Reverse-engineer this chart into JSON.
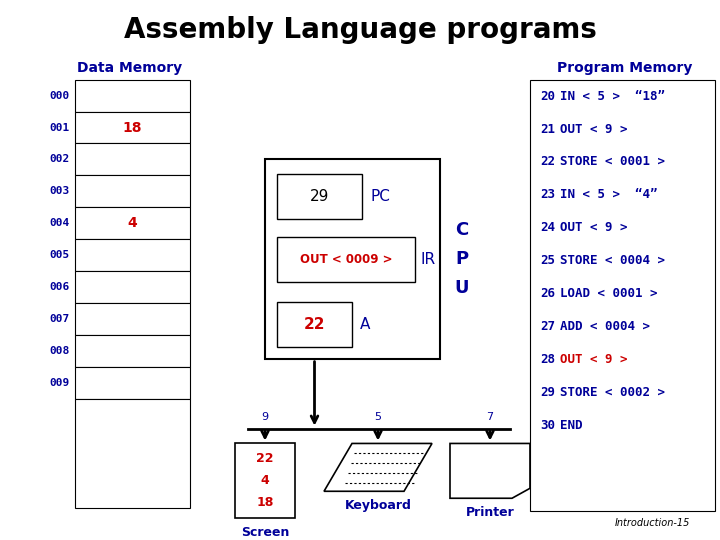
{
  "title": "Assembly Language programs",
  "title_fontsize": 20,
  "title_fontweight": "bold",
  "bg_color": "#ffffff",
  "data_memory_label": "Data Memory",
  "program_memory_label": "Program Memory",
  "label_color": "#000099",
  "label_fontsize": 9,
  "memory_rows": [
    "000",
    "001",
    "002",
    "003",
    "004",
    "005",
    "006",
    "007",
    "008",
    "009"
  ],
  "memory_values": {
    "001": "18",
    "004": "4"
  },
  "memory_value_color": "#cc0000",
  "cpu_label": "C\nP\nU",
  "cpu_label_color": "#000099",
  "pc_val": "29",
  "pc_label": "PC",
  "ir_val": "OUT < 0009 >",
  "ir_label": "IR",
  "ir_val_color": "#cc0000",
  "a_val": "22",
  "a_label": "A",
  "a_val_color": "#cc0000",
  "program_lines": [
    {
      "num": "20",
      "text": "IN < 5 >  “18”",
      "color": "#000099"
    },
    {
      "num": "21",
      "text": "OUT < 9 >",
      "color": "#000099"
    },
    {
      "num": "22",
      "text": "STORE < 0001 >",
      "color": "#000099"
    },
    {
      "num": "23",
      "text": "IN < 5 >  “4”",
      "color": "#000099"
    },
    {
      "num": "24",
      "text": "OUT < 9 >",
      "color": "#000099"
    },
    {
      "num": "25",
      "text": "STORE < 0004 >",
      "color": "#000099"
    },
    {
      "num": "26",
      "text": "LOAD < 0001 >",
      "color": "#000099"
    },
    {
      "num": "27",
      "text": "ADD < 0004 >",
      "color": "#000099"
    },
    {
      "num": "28",
      "text": "OUT < 9 >",
      "color": "#cc0000"
    },
    {
      "num": "29",
      "text": "STORE < 0002 >",
      "color": "#000099"
    },
    {
      "num": "30",
      "text": "END",
      "color": "#000099"
    }
  ],
  "screen_vals": [
    "22",
    "4",
    "18"
  ],
  "screen_val_color": "#cc0000",
  "footnote": "Introduction-15"
}
